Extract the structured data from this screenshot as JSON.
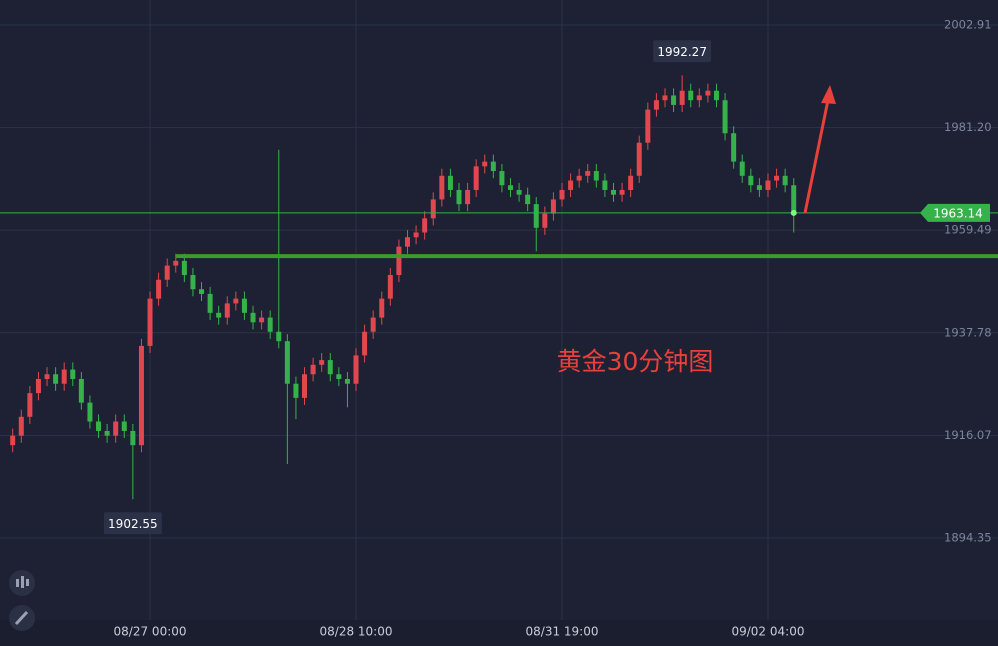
{
  "chart_data": {
    "type": "candlestick",
    "title": "黄金30分钟图",
    "x": [
      0,
      1,
      2,
      3,
      4,
      5,
      6,
      7,
      8,
      9,
      10,
      11,
      12,
      13,
      14,
      15,
      16,
      17,
      18,
      19,
      20,
      21,
      22,
      23,
      24,
      25,
      26,
      27,
      28,
      29,
      30,
      31,
      32,
      33,
      34,
      35,
      36,
      37,
      38,
      39,
      40,
      41,
      42,
      43,
      44,
      45,
      46,
      47,
      48,
      49,
      50,
      51,
      52,
      53,
      54,
      55,
      56,
      57,
      58,
      59,
      60,
      61,
      62,
      63,
      64,
      65,
      66,
      67,
      68,
      69,
      70,
      71,
      72,
      73,
      74,
      75,
      76,
      77,
      78,
      79,
      80,
      81,
      82,
      83,
      84,
      85,
      86,
      87,
      88,
      89,
      90,
      91
    ],
    "open": [
      1914,
      1916,
      1920,
      1925,
      1928,
      1929,
      1927,
      1930,
      1928,
      1923,
      1919,
      1917,
      1916,
      1919,
      1917,
      1914,
      1935,
      1945,
      1949,
      1952,
      1953,
      1950,
      1947,
      1946,
      1942,
      1941,
      1944,
      1945,
      1942,
      1940,
      1941,
      1938,
      1936,
      1927,
      1924,
      1929,
      1931,
      1932,
      1929,
      1928,
      1927,
      1933,
      1938,
      1941,
      1945,
      1950,
      1956,
      1958,
      1959,
      1962,
      1966,
      1971,
      1968,
      1965,
      1968,
      1973,
      1974,
      1972,
      1969,
      1968,
      1967,
      1965,
      1960,
      1963,
      1966,
      1968,
      1970,
      1971,
      1972,
      1970,
      1968,
      1967,
      1968,
      1971,
      1978,
      1985,
      1987,
      1988,
      1986,
      1989,
      1987,
      1988,
      1989,
      1987,
      1980,
      1974,
      1971,
      1969,
      1968,
      1970,
      1971,
      1969
    ],
    "high": [
      1917.5,
      1921.5,
      1926.5,
      1929.5,
      1930.5,
      1930.5,
      1931.5,
      1931.5,
      1929.5,
      1924.5,
      1920.5,
      1918.5,
      1920.5,
      1920.5,
      1918.5,
      1936.5,
      1946.5,
      1950.5,
      1953.5,
      1954.5,
      1954.5,
      1951.5,
      1948.5,
      1947.5,
      1943.5,
      1945.5,
      1946.5,
      1946.5,
      1943.5,
      1942.5,
      1942.5,
      1976.5,
      1937.5,
      1928.5,
      1930.5,
      1932.5,
      1933.5,
      1933.5,
      1930.5,
      1929.5,
      1934.5,
      1939.5,
      1942.5,
      1946.5,
      1951.5,
      1957.5,
      1959.5,
      1960.5,
      1963.5,
      1967.5,
      1972.5,
      1972.5,
      1969.5,
      1969.5,
      1974.5,
      1975.5,
      1975.5,
      1973.5,
      1970.5,
      1969.5,
      1968.5,
      1966.5,
      1964.5,
      1967.5,
      1969.5,
      1971.5,
      1972.5,
      1973.5,
      1973.5,
      1971.5,
      1969.5,
      1969.5,
      1972.5,
      1979.5,
      1986.5,
      1988.5,
      1989.5,
      1989.5,
      1992.27,
      1990.5,
      1989.5,
      1990.5,
      1990.5,
      1988.5,
      1981.5,
      1975.5,
      1972.5,
      1970.5,
      1971.5,
      1972.5,
      1972.5,
      1970.5
    ],
    "low": [
      1912.5,
      1914.5,
      1918.5,
      1923.5,
      1926.5,
      1925.5,
      1925.5,
      1926.5,
      1921.5,
      1917.5,
      1915.5,
      1914.5,
      1914.5,
      1915.5,
      1902.55,
      1912.5,
      1933.5,
      1943.5,
      1947.5,
      1950.5,
      1948.5,
      1945.5,
      1944.5,
      1940.5,
      1939.5,
      1939.5,
      1942.5,
      1940.5,
      1938.5,
      1938.5,
      1936.5,
      1934.5,
      1910,
      1919.5,
      1922.5,
      1927.5,
      1929.5,
      1927.5,
      1926.5,
      1922,
      1925.5,
      1931.5,
      1936.5,
      1939.5,
      1943.5,
      1948.5,
      1954.5,
      1956.5,
      1957.5,
      1960.5,
      1964.5,
      1966.5,
      1963.5,
      1963.5,
      1966.5,
      1971.5,
      1970.5,
      1967.5,
      1966.5,
      1965.5,
      1963.5,
      1955,
      1958.5,
      1961.5,
      1964.5,
      1966.5,
      1968.5,
      1969.5,
      1968.5,
      1966.5,
      1965.5,
      1965.5,
      1966.5,
      1969.5,
      1976.5,
      1983.5,
      1985.5,
      1984.5,
      1984.5,
      1985.5,
      1985.5,
      1986.5,
      1985.5,
      1978.5,
      1972.5,
      1969.5,
      1967.5,
      1966.5,
      1966.5,
      1968.5,
      1967.5,
      1959
    ],
    "close": [
      1916,
      1920,
      1925,
      1928,
      1929,
      1927,
      1930,
      1928,
      1923,
      1919,
      1917,
      1916,
      1919,
      1917,
      1914,
      1935,
      1945,
      1949,
      1952,
      1953,
      1950,
      1947,
      1946,
      1942,
      1941,
      1944,
      1945,
      1942,
      1940,
      1941,
      1938,
      1936,
      1927,
      1924,
      1929,
      1931,
      1932,
      1929,
      1928,
      1927,
      1933,
      1938,
      1941,
      1945,
      1950,
      1956,
      1958,
      1959,
      1962,
      1966,
      1971,
      1968,
      1965,
      1968,
      1973,
      1974,
      1972,
      1969,
      1968,
      1967,
      1965,
      1960,
      1963,
      1966,
      1968,
      1970,
      1971,
      1972,
      1970,
      1968,
      1967,
      1968,
      1971,
      1978,
      1985,
      1987,
      1988,
      1986,
      1989,
      1987,
      1988,
      1989,
      1987,
      1980,
      1974,
      1971,
      1969,
      1968,
      1970,
      1971,
      1969,
      1963.14
    ],
    "up_color": "#e2474f",
    "down_color": "#35b34a",
    "xlim": [
      -1.48,
      114.8
    ],
    "xticks": [
      {
        "value": 16,
        "label": "08/27 00:00"
      },
      {
        "value": 40,
        "label": "08/28 10:00"
      },
      {
        "value": 64,
        "label": "08/31 19:00"
      },
      {
        "value": 88,
        "label": "09/02 04:00"
      }
    ],
    "ylim": [
      1877.0,
      2008.2
    ],
    "yticks": [
      2002.91,
      {
        "value": 1981.2,
        "label": "1981.20"
      },
      1959.49,
      1937.78,
      1916.07,
      1894.35
    ],
    "grid": true,
    "last_price": 1963.14,
    "annotations": [
      {
        "x": 78,
        "value": 1992.27,
        "side": "above"
      },
      {
        "x": 14,
        "value": 1902.55,
        "side": "below"
      }
    ],
    "levels": [
      {
        "value": 1954.0,
        "from": 19,
        "color": "#3d9a2c"
      }
    ]
  }
}
